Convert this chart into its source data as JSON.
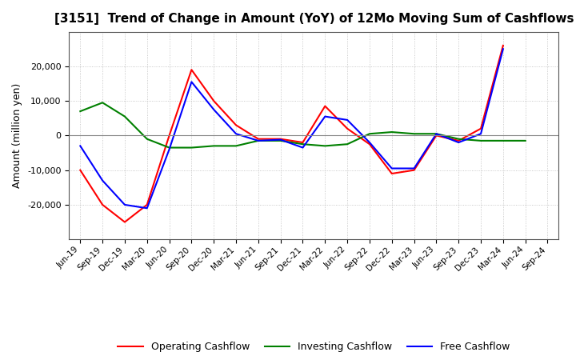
{
  "title": "[3151]  Trend of Change in Amount (YoY) of 12Mo Moving Sum of Cashflows",
  "ylabel": "Amount (million yen)",
  "x_labels": [
    "Jun-19",
    "Sep-19",
    "Dec-19",
    "Mar-20",
    "Jun-20",
    "Sep-20",
    "Dec-20",
    "Mar-21",
    "Jun-21",
    "Sep-21",
    "Dec-21",
    "Mar-22",
    "Jun-22",
    "Sep-22",
    "Dec-22",
    "Mar-23",
    "Jun-23",
    "Sep-23",
    "Dec-23",
    "Mar-24",
    "Jun-24",
    "Sep-24"
  ],
  "operating": [
    -10000,
    -20000,
    -25000,
    -20000,
    0,
    19000,
    10000,
    3000,
    -1000,
    -1000,
    -2000,
    8500,
    2000,
    -2500,
    -11000,
    -10000,
    0,
    -1500,
    2000,
    26000,
    null,
    null
  ],
  "investing": [
    7000,
    9500,
    5500,
    -1000,
    -3500,
    -3500,
    -3000,
    -3000,
    -1500,
    -1500,
    -2500,
    -3000,
    -2500,
    500,
    1000,
    500,
    500,
    -1000,
    -1500,
    -1500,
    -1500,
    null
  ],
  "free": [
    -3000,
    -13000,
    -20000,
    -21000,
    -4000,
    15500,
    7500,
    500,
    -1500,
    -1200,
    -3500,
    5500,
    4500,
    -2000,
    -9500,
    -9500,
    500,
    -2000,
    500,
    25000,
    null,
    null
  ],
  "operating_color": "#ff0000",
  "investing_color": "#008000",
  "free_color": "#0000ff",
  "ylim": [
    -30000,
    30000
  ],
  "yticks": [
    -20000,
    -10000,
    0,
    10000,
    20000
  ],
  "bg_color": "#ffffff",
  "grid_color": "#aaaaaa",
  "legend_labels": [
    "Operating Cashflow",
    "Investing Cashflow",
    "Free Cashflow"
  ]
}
